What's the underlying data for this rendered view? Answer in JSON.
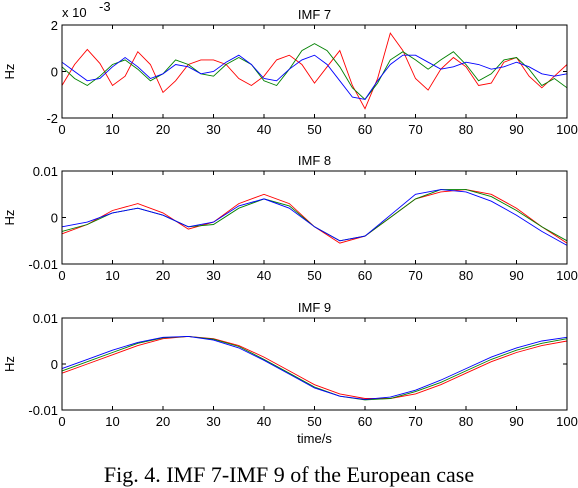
{
  "caption": "Fig. 4. IMF 7-IMF 9 of the European case",
  "chart_data": [
    {
      "type": "line",
      "title": "IMF 7",
      "ylabel": "Hz",
      "xlabel": "",
      "exponent_label": "x 10",
      "exponent_power": "-3",
      "xlim": [
        0,
        100
      ],
      "ylim": [
        -2,
        2
      ],
      "xticks": [
        0,
        10,
        20,
        30,
        40,
        50,
        60,
        70,
        80,
        90,
        100
      ],
      "yticks": [
        -2,
        0,
        2
      ],
      "series": [
        {
          "color": "#ff0000",
          "x": [
            0,
            2.5,
            5,
            7.5,
            10,
            12.5,
            15,
            17.5,
            20,
            22.5,
            25,
            27.5,
            30,
            32.5,
            35,
            37.5,
            40,
            42.5,
            45,
            47.5,
            50,
            52.5,
            55,
            57.5,
            60,
            62.5,
            65,
            67.5,
            70,
            72.5,
            75,
            77.5,
            80,
            82.5,
            85,
            87.5,
            90,
            92.5,
            95,
            97.5,
            100
          ],
          "y": [
            -0.6,
            0.3,
            0.95,
            0.35,
            -0.6,
            -0.2,
            0.85,
            0.3,
            -0.9,
            -0.4,
            0.3,
            0.5,
            0.5,
            0.3,
            -0.3,
            -0.6,
            -0.2,
            0.5,
            0.7,
            0.3,
            -0.5,
            0.2,
            0.9,
            -0.6,
            -1.6,
            -0.3,
            1.65,
            0.9,
            -0.3,
            -0.8,
            0.1,
            0.6,
            0.2,
            -0.6,
            -0.5,
            0.4,
            0.6,
            -0.2,
            -0.7,
            -0.2,
            0.3
          ]
        },
        {
          "color": "#008000",
          "x": [
            0,
            2.5,
            5,
            7.5,
            10,
            12.5,
            15,
            17.5,
            20,
            22.5,
            25,
            27.5,
            30,
            32.5,
            35,
            37.5,
            40,
            42.5,
            45,
            47.5,
            50,
            52.5,
            55,
            57.5,
            60,
            62.5,
            65,
            67.5,
            70,
            72.5,
            75,
            77.5,
            80,
            82.5,
            85,
            87.5,
            90,
            92.5,
            95,
            97.5,
            100
          ],
          "y": [
            0.2,
            -0.3,
            -0.6,
            -0.2,
            0.3,
            0.5,
            0.1,
            -0.4,
            -0.1,
            0.5,
            0.3,
            -0.1,
            -0.2,
            0.3,
            0.6,
            0.3,
            -0.4,
            -0.6,
            0.1,
            0.9,
            1.2,
            0.9,
            0.2,
            -0.7,
            -1.2,
            -0.5,
            0.5,
            0.85,
            0.5,
            0.1,
            0.5,
            0.85,
            0.3,
            -0.4,
            -0.1,
            0.5,
            0.6,
            0.1,
            -0.6,
            -0.3,
            -0.7
          ]
        },
        {
          "color": "#0000ff",
          "x": [
            0,
            2.5,
            5,
            7.5,
            10,
            12.5,
            15,
            17.5,
            20,
            22.5,
            25,
            27.5,
            30,
            32.5,
            35,
            37.5,
            40,
            42.5,
            45,
            47.5,
            50,
            52.5,
            55,
            57.5,
            60,
            62.5,
            65,
            67.5,
            70,
            72.5,
            75,
            77.5,
            80,
            82.5,
            85,
            87.5,
            90,
            92.5,
            95,
            97.5,
            100
          ],
          "y": [
            0.4,
            0.0,
            -0.4,
            -0.3,
            0.2,
            0.6,
            0.2,
            -0.3,
            -0.1,
            0.3,
            0.2,
            -0.1,
            0.0,
            0.4,
            0.7,
            0.3,
            -0.3,
            -0.4,
            0.1,
            0.5,
            0.7,
            0.3,
            -0.4,
            -1.1,
            -1.2,
            -0.4,
            0.3,
            0.7,
            0.7,
            0.4,
            0.1,
            0.2,
            0.4,
            0.3,
            0.1,
            0.2,
            0.4,
            0.2,
            -0.1,
            -0.2,
            -0.1
          ]
        }
      ]
    },
    {
      "type": "line",
      "title": "IMF 8",
      "ylabel": "Hz",
      "xlabel": "",
      "xlim": [
        0,
        100
      ],
      "ylim": [
        -0.01,
        0.01
      ],
      "xticks": [
        0,
        10,
        20,
        30,
        40,
        50,
        60,
        70,
        80,
        90,
        100
      ],
      "yticks": [
        -0.01,
        0,
        0.01
      ],
      "yticklabels": [
        "-0.01",
        "0",
        "0.01"
      ],
      "series": [
        {
          "color": "#ff0000",
          "x": [
            0,
            5,
            10,
            15,
            20,
            25,
            30,
            35,
            40,
            45,
            50,
            55,
            60,
            65,
            70,
            75,
            80,
            85,
            90,
            95,
            100
          ],
          "y": [
            -0.0035,
            -0.0015,
            0.0015,
            0.003,
            0.001,
            -0.0025,
            -0.001,
            0.003,
            0.005,
            0.003,
            -0.002,
            -0.0055,
            -0.004,
            0.0,
            0.004,
            0.0055,
            0.006,
            0.005,
            0.002,
            -0.002,
            -0.0055
          ]
        },
        {
          "color": "#008000",
          "x": [
            0,
            5,
            10,
            15,
            20,
            25,
            30,
            35,
            40,
            45,
            50,
            55,
            60,
            65,
            70,
            75,
            80,
            85,
            90,
            95,
            100
          ],
          "y": [
            -0.003,
            -0.0015,
            0.001,
            0.002,
            0.0005,
            -0.002,
            -0.0015,
            0.002,
            0.004,
            0.0025,
            -0.002,
            -0.005,
            -0.004,
            0.0,
            0.004,
            0.006,
            0.006,
            0.0045,
            0.0015,
            -0.002,
            -0.005
          ]
        },
        {
          "color": "#0000ff",
          "x": [
            0,
            5,
            10,
            15,
            20,
            25,
            30,
            35,
            40,
            45,
            50,
            55,
            60,
            65,
            70,
            75,
            80,
            85,
            90,
            95,
            100
          ],
          "y": [
            -0.002,
            -0.001,
            0.001,
            0.002,
            0.0005,
            -0.002,
            -0.001,
            0.0025,
            0.004,
            0.002,
            -0.002,
            -0.005,
            -0.004,
            0.0005,
            0.005,
            0.006,
            0.0055,
            0.0035,
            0.0005,
            -0.003,
            -0.006
          ]
        }
      ]
    },
    {
      "type": "line",
      "title": "IMF 9",
      "ylabel": "Hz",
      "xlabel": "time/s",
      "xlim": [
        0,
        100
      ],
      "ylim": [
        -0.01,
        0.01
      ],
      "xticks": [
        0,
        10,
        20,
        30,
        40,
        50,
        60,
        70,
        80,
        90,
        100
      ],
      "yticks": [
        -0.01,
        0,
        0.01
      ],
      "yticklabels": [
        "-0.01",
        "0",
        "0.01"
      ],
      "series": [
        {
          "color": "#ff0000",
          "x": [
            0,
            5,
            10,
            15,
            20,
            25,
            30,
            35,
            40,
            45,
            50,
            55,
            60,
            65,
            70,
            75,
            80,
            85,
            90,
            95,
            100
          ],
          "y": [
            -0.002,
            0.0,
            0.002,
            0.004,
            0.0055,
            0.006,
            0.0055,
            0.004,
            0.0015,
            -0.0015,
            -0.0045,
            -0.0065,
            -0.0075,
            -0.0075,
            -0.0065,
            -0.0045,
            -0.002,
            0.0005,
            0.0025,
            0.004,
            0.005
          ]
        },
        {
          "color": "#008000",
          "x": [
            0,
            5,
            10,
            15,
            20,
            25,
            30,
            35,
            40,
            45,
            50,
            55,
            60,
            65,
            70,
            75,
            80,
            85,
            90,
            95,
            100
          ],
          "y": [
            -0.0015,
            0.0005,
            0.0025,
            0.0045,
            0.0057,
            0.006,
            0.0054,
            0.0038,
            0.001,
            -0.002,
            -0.005,
            -0.007,
            -0.0078,
            -0.0075,
            -0.006,
            -0.004,
            -0.0015,
            0.001,
            0.003,
            0.0045,
            0.0055
          ]
        },
        {
          "color": "#0000ff",
          "x": [
            0,
            5,
            10,
            15,
            20,
            25,
            30,
            35,
            40,
            45,
            50,
            55,
            60,
            65,
            70,
            75,
            80,
            85,
            90,
            95,
            100
          ],
          "y": [
            -0.001,
            0.001,
            0.003,
            0.0047,
            0.0058,
            0.006,
            0.0052,
            0.0035,
            0.0008,
            -0.0022,
            -0.0052,
            -0.007,
            -0.0077,
            -0.0072,
            -0.0057,
            -0.0035,
            -0.001,
            0.0015,
            0.0035,
            0.005,
            0.0058
          ]
        }
      ]
    }
  ]
}
